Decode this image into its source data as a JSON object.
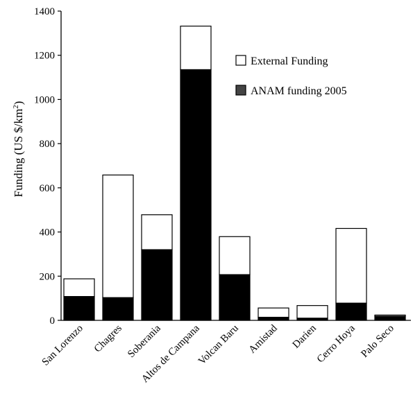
{
  "chart_data": {
    "type": "bar",
    "stacked": true,
    "title": "",
    "xlabel": "",
    "ylabel": "Funding (US $/km",
    "ylabel_superscript": "2",
    "ylabel_close": ")",
    "ylim": [
      0,
      1400
    ],
    "yticks": [
      0,
      200,
      400,
      600,
      800,
      1000,
      1200,
      1400
    ],
    "grid": false,
    "legend_position": "top-right",
    "categories": [
      "San Lorenzo",
      "Chagres",
      "Soberania",
      "Altos de Campana",
      "Volcan Baru",
      "Amistad",
      "Darien",
      "Cerro Hoya",
      "Palo Seco"
    ],
    "series": [
      {
        "name": "ANAM funding 2005",
        "color": "#000000",
        "values": [
          108,
          103,
          320,
          1135,
          207,
          14,
          10,
          78,
          19
        ]
      },
      {
        "name": "External Funding",
        "color": "#ffffff",
        "values": [
          80,
          555,
          158,
          197,
          172,
          42,
          57,
          338,
          5
        ]
      }
    ]
  }
}
